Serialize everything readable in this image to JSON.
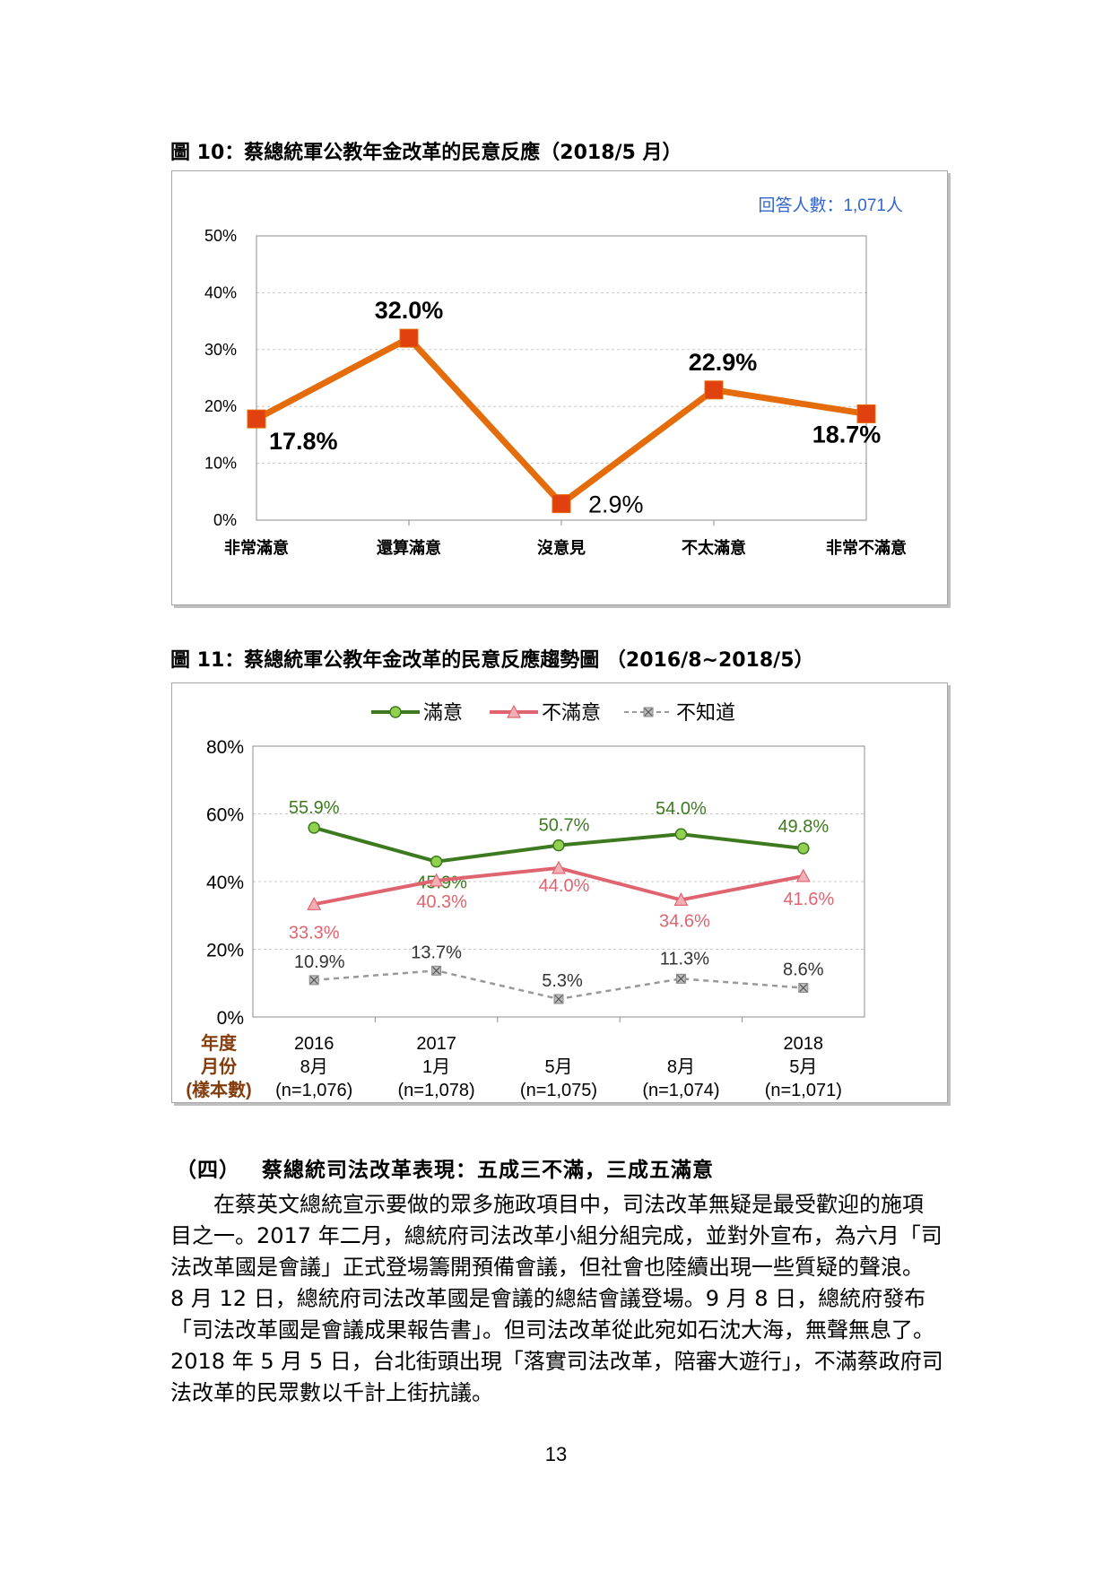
{
  "figure10": {
    "caption": "圖 10：蔡總統軍公教年金改革的民意反應（2018/5 月）",
    "sample_note": "回答人數：1,071人"
  },
  "figure11": {
    "caption": "圖 11：蔡總統軍公教年金改革的民意反應趨勢圖 （2016/8~2018/5）",
    "row_labels": [
      "年度",
      "月份",
      "(樣本數)"
    ]
  },
  "colors": {
    "fig10_line": "#e46c0a",
    "fig10_marker": "#e0410f",
    "satisfied": "#3d7a1f",
    "satisfied_marker": "#92d050",
    "dissatisfied": "#e06470",
    "dont_know": "#999999",
    "blue_note": "#3366cc",
    "row_label": "#843c0c"
  },
  "chart_data": [
    {
      "type": "line",
      "categories": [
        "非常滿意",
        "還算滿意",
        "沒意見",
        "不太滿意",
        "非常不滿意"
      ],
      "values": [
        17.8,
        32.0,
        2.9,
        22.9,
        18.7
      ],
      "data_labels": [
        "17.8%",
        "32.0%",
        "2.9%",
        "22.9%",
        "18.7%"
      ],
      "yticks": [
        "0%",
        "10%",
        "20%",
        "30%",
        "40%",
        "50%"
      ],
      "ylim": [
        0,
        50
      ],
      "grid": true,
      "legend": "none"
    },
    {
      "type": "line",
      "categories": [
        {
          "year": "2016",
          "month": "8月",
          "n": "(n=1,076)"
        },
        {
          "year": "2017",
          "month": "1月",
          "n": "(n=1,078)"
        },
        {
          "year": "",
          "month": "5月",
          "n": "(n=1,075)"
        },
        {
          "year": "",
          "month": "8月",
          "n": "(n=1,074)"
        },
        {
          "year": "2018",
          "month": "5月",
          "n": "(n=1,071)"
        }
      ],
      "series": [
        {
          "name": "滿意",
          "values": [
            55.9,
            45.9,
            50.7,
            54.0,
            49.8
          ],
          "labels": [
            "55.9%",
            "45.9%",
            "50.7%",
            "54.0%",
            "49.8%"
          ]
        },
        {
          "name": "不滿意",
          "values": [
            33.3,
            40.3,
            44.0,
            34.6,
            41.6
          ],
          "labels": [
            "33.3%",
            "40.3%",
            "44.0%",
            "34.6%",
            "41.6%"
          ]
        },
        {
          "name": "不知道",
          "values": [
            10.9,
            13.7,
            5.3,
            11.3,
            8.6
          ],
          "labels": [
            "10.9%",
            "13.7%",
            "5.3%",
            "11.3%",
            "8.6%"
          ]
        }
      ],
      "yticks": [
        "0%",
        "20%",
        "40%",
        "60%",
        "80%"
      ],
      "ylim": [
        0,
        80
      ],
      "grid": true,
      "legend": "top"
    }
  ],
  "section": {
    "number": "（四）",
    "title": "蔡總統司法改革表現：五成三不滿，三成五滿意"
  },
  "body_lines": [
    "　　在蔡英文總統宣示要做的眾多施政項目中，司法改革無疑是最受歡迎的施項",
    "目之一。2017 年二月，總統府司法改革小組分組完成，並對外宣布，為六月「司",
    "法改革國是會議」正式登場籌開預備會議，但社會也陸續出現一些質疑的聲浪。",
    "8 月 12 日，總統府司法改革國是會議的總結會議登場。9 月 8 日，總統府發布",
    "「司法改革國是會議成果報告書」。但司法改革從此宛如石沈大海，無聲無息了。",
    "2018 年 5 月 5 日，台北街頭出現「落實司法改革，陪審大遊行」，不滿蔡政府司",
    "法改革的民眾數以千計上街抗議。"
  ],
  "page_number": "13"
}
